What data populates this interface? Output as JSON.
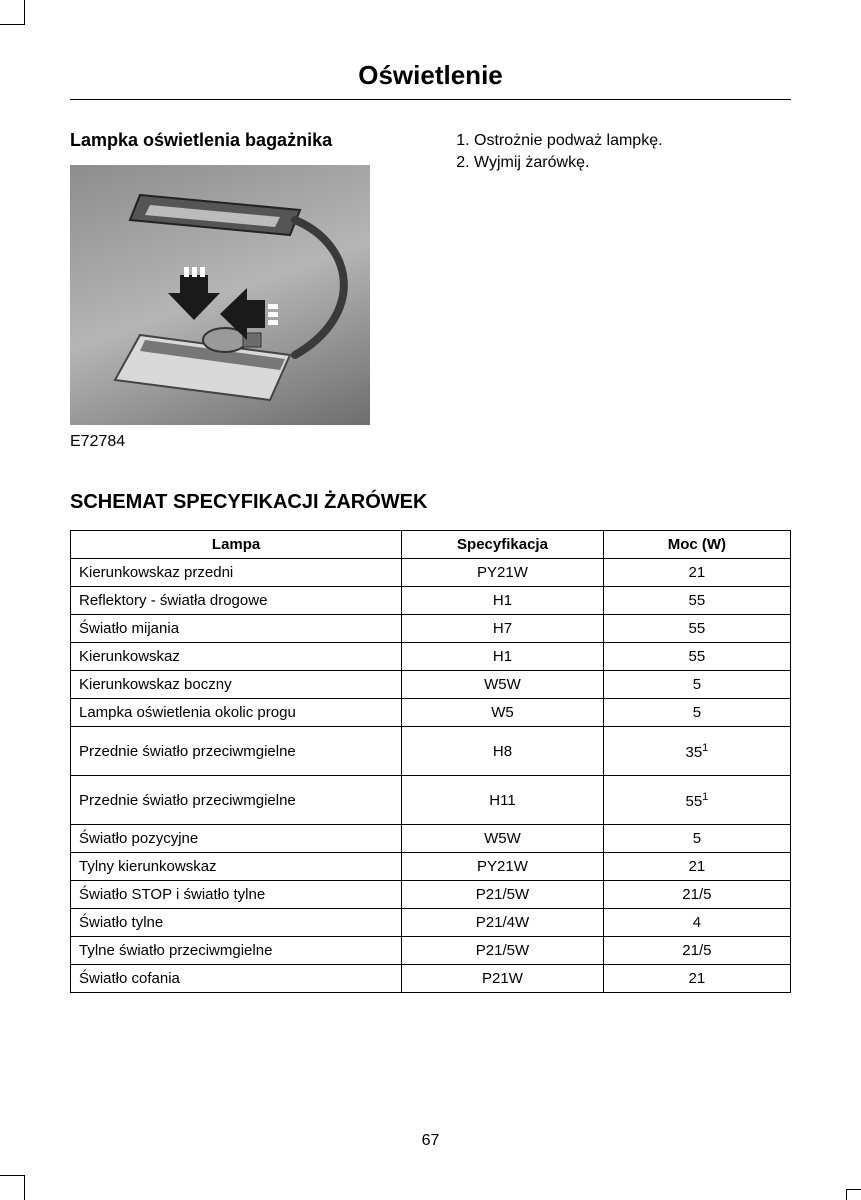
{
  "page": {
    "title": "Oświetlenie",
    "number": "67"
  },
  "left": {
    "heading": "Lampka oświetlenia bagażnika",
    "figure_code": "E72784"
  },
  "steps": [
    "Ostrożnie podważ lampkę.",
    "Wyjmij żarówkę."
  ],
  "spec_section": {
    "heading": "SCHEMAT SPECYFIKACJI ŻARÓWEK",
    "columns": [
      "Lampa",
      "Specyfikacja",
      "Moc (W)"
    ],
    "rows": [
      {
        "lamp": "Kierunkowskaz przedni",
        "spec": "PY21W",
        "power": "21"
      },
      {
        "lamp": "Reflektory - światła drogowe",
        "spec": "H1",
        "power": "55"
      },
      {
        "lamp": "Światło mijania",
        "spec": "H7",
        "power": "55"
      },
      {
        "lamp": "Kierunkowskaz",
        "spec": "H1",
        "power": "55"
      },
      {
        "lamp": "Kierunkowskaz boczny",
        "spec": "W5W",
        "power": "5"
      },
      {
        "lamp": "Lampka oświetlenia okolic progu",
        "spec": "W5",
        "power": "5"
      },
      {
        "lamp": "Przednie światło przeciwmgielne",
        "spec": "H8",
        "power": "35",
        "sup": "1",
        "tall": true
      },
      {
        "lamp": "Przednie światło przeciwmgielne",
        "spec": "H11",
        "power": "55",
        "sup": "1",
        "tall": true
      },
      {
        "lamp": "Światło pozycyjne",
        "spec": "W5W",
        "power": "5"
      },
      {
        "lamp": "Tylny kierunkowskaz",
        "spec": "PY21W",
        "power": "21"
      },
      {
        "lamp": "Światło STOP i światło tylne",
        "spec": "P21/5W",
        "power": "21/5"
      },
      {
        "lamp": "Światło tylne",
        "spec": "P21/4W",
        "power": "4"
      },
      {
        "lamp": "Tylne światło przeciwmgielne",
        "spec": "P21/5W",
        "power": "21/5"
      },
      {
        "lamp": "Światło cofania",
        "spec": "P21W",
        "power": "21"
      }
    ]
  },
  "style": {
    "font_family": "Arial",
    "text_color": "#000000",
    "background_color": "#ffffff",
    "border_color": "#000000",
    "title_fontsize_pt": 20,
    "subheading_fontsize_pt": 14,
    "section_heading_fontsize_pt": 15,
    "body_fontsize_pt": 12,
    "table_fontsize_pt": 11
  }
}
